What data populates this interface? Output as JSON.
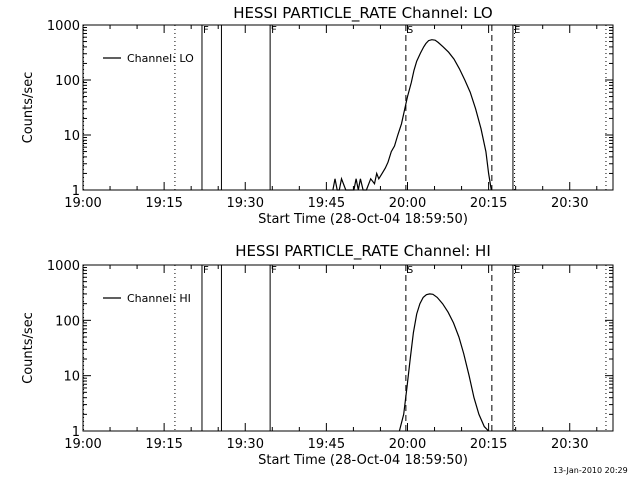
{
  "footer": {
    "timestamp": "13-Jan-2010 20:29"
  },
  "chart_data": [
    {
      "type": "line",
      "title": "HESSI PARTICLE_RATE Channel: LO",
      "xlabel": "Start Time (28-Oct-04 18:59:50)",
      "ylabel": "Counts/sec",
      "y_scale": "log",
      "ylim": [
        1,
        1000
      ],
      "xlim": [
        "19:00",
        "20:38"
      ],
      "x_ticks": [
        "19:00",
        "19:15",
        "19:30",
        "19:45",
        "20:00",
        "20:15",
        "20:30"
      ],
      "y_ticks": [
        "1",
        "10",
        "100",
        "1000"
      ],
      "legend": {
        "placement": "top-left",
        "entries": [
          "Channel: LO"
        ]
      },
      "grid": false,
      "markers": [
        {
          "time": "19:00.1",
          "style": "dotted",
          "label": ""
        },
        {
          "time": "19:17",
          "style": "dotted",
          "label": ""
        },
        {
          "time": "19:22",
          "style": "solid",
          "label": "F"
        },
        {
          "time": "19:25.6",
          "style": "solid",
          "label": ""
        },
        {
          "time": "19:34.6",
          "style": "solid",
          "label": "F"
        },
        {
          "time": "19:59.7",
          "style": "dashed",
          "label": "S"
        },
        {
          "time": "20:15.6",
          "style": "dashed",
          "label": ""
        },
        {
          "time": "20:19.5",
          "style": "solid",
          "label": "E"
        },
        {
          "time": "20:19.8",
          "style": "dotted",
          "label": ""
        },
        {
          "time": "20:36.7",
          "style": "dotted",
          "label": ""
        }
      ],
      "series": [
        {
          "name": "Channel: LO",
          "x": [
            "19:46.2",
            "19:46.6",
            "19:47",
            "19:47.4",
            "19:47.8",
            "19:48.6",
            "19:49.4",
            "19:50.1",
            "19:50.5",
            "19:50.9",
            "19:51.3",
            "19:51.8",
            "19:52.4",
            "19:53.2",
            "19:53.9",
            "19:54.3",
            "19:54.7",
            "19:55.3",
            "19:55.9",
            "19:56.4",
            "19:57",
            "19:57.6",
            "19:58.2",
            "19:58.9",
            "19:59.5",
            "20:00",
            "20:00.7",
            "20:01.2",
            "20:01.7",
            "20:02.4",
            "20:03",
            "20:03.4",
            "20:03.9",
            "20:04.5",
            "20:05.1",
            "20:05.7",
            "20:06.6",
            "20:07.6",
            "20:08.6",
            "20:09.6",
            "20:10.6",
            "20:11.6",
            "20:12.6",
            "20:13.6",
            "20:14.5",
            "20:15",
            "20:15.5"
          ],
          "y": [
            1,
            1.6,
            1,
            1,
            1.6,
            1,
            1,
            1,
            1.6,
            1,
            1.6,
            1,
            1,
            1.6,
            1.3,
            2,
            1.6,
            2,
            2.5,
            3.2,
            5,
            6.3,
            10,
            16,
            30,
            50,
            90,
            150,
            220,
            310,
            400,
            460,
            520,
            540,
            530,
            480,
            400,
            320,
            240,
            160,
            100,
            60,
            30,
            13,
            5,
            2,
            1
          ]
        }
      ]
    },
    {
      "type": "line",
      "title": "HESSI PARTICLE_RATE Channel: HI",
      "xlabel": "Start Time (28-Oct-04 18:59:50)",
      "ylabel": "Counts/sec",
      "y_scale": "log",
      "ylim": [
        1,
        1000
      ],
      "xlim": [
        "19:00",
        "20:38"
      ],
      "x_ticks": [
        "19:00",
        "19:15",
        "19:30",
        "19:45",
        "20:00",
        "20:15",
        "20:30"
      ],
      "y_ticks": [
        "1",
        "10",
        "100",
        "1000"
      ],
      "legend": {
        "placement": "top-left",
        "entries": [
          "Channel: HI"
        ]
      },
      "grid": false,
      "markers": [
        {
          "time": "19:00.1",
          "style": "dotted",
          "label": ""
        },
        {
          "time": "19:17",
          "style": "dotted",
          "label": ""
        },
        {
          "time": "19:22",
          "style": "solid",
          "label": "F"
        },
        {
          "time": "19:25.6",
          "style": "solid",
          "label": ""
        },
        {
          "time": "19:34.6",
          "style": "solid",
          "label": "F"
        },
        {
          "time": "19:59.7",
          "style": "dashed",
          "label": "S"
        },
        {
          "time": "20:15.6",
          "style": "dashed",
          "label": ""
        },
        {
          "time": "20:19.5",
          "style": "solid",
          "label": "E"
        },
        {
          "time": "20:19.8",
          "style": "dotted",
          "label": ""
        },
        {
          "time": "20:36.7",
          "style": "dotted",
          "label": ""
        }
      ],
      "series": [
        {
          "name": "Channel: HI",
          "x": [
            "19:58.5",
            "19:59.3",
            "19:59.9",
            "20:00.5",
            "20:01.1",
            "20:01.7",
            "20:02.3",
            "20:02.9",
            "20:03.5",
            "20:04.1",
            "20:04.7",
            "20:05.5",
            "20:06.5",
            "20:07.5",
            "20:08.5",
            "20:09.5",
            "20:10.4",
            "20:11.4",
            "20:12.3",
            "20:13.2",
            "20:14.2",
            "20:15"
          ],
          "y": [
            1,
            2,
            6,
            20,
            60,
            130,
            200,
            260,
            290,
            300,
            295,
            260,
            200,
            140,
            90,
            50,
            25,
            10,
            4,
            2,
            1.2,
            1
          ]
        }
      ]
    }
  ]
}
